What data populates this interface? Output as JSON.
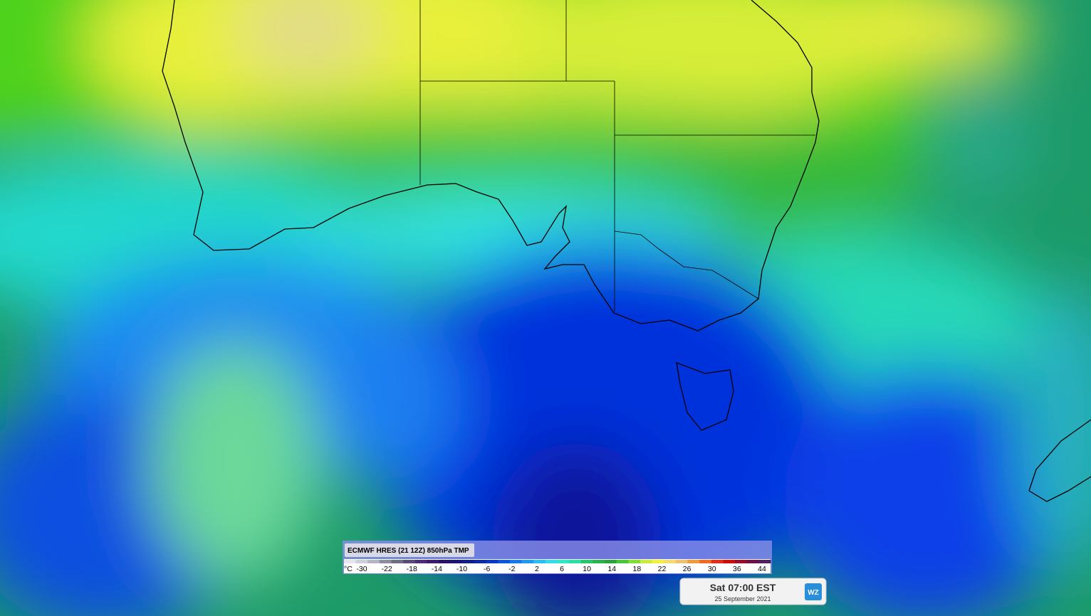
{
  "legend": {
    "title": "ECMWF HRES (21 12Z) 850hPa TMP",
    "unit": "°C",
    "labels": [
      -30,
      -22,
      -18,
      -14,
      -10,
      -6,
      -2,
      2,
      6,
      10,
      14,
      18,
      22,
      26,
      30,
      36,
      44
    ],
    "colors": [
      "#e6e6ee",
      "#cfcfdc",
      "#b4b4c6",
      "#8c8ca2",
      "#6e6e86",
      "#5a4a78",
      "#4a2c7a",
      "#3c1a70",
      "#28126a",
      "#1c1476",
      "#101e88",
      "#0a2aa6",
      "#0838c8",
      "#0a56e0",
      "#1478f0",
      "#1c9af4",
      "#26c0f6",
      "#30dcf0",
      "#2ce8c8",
      "#28e0a0",
      "#20c868",
      "#26b44c",
      "#2aa23c",
      "#44c83a",
      "#7ee034",
      "#c6ee34",
      "#f2f23a",
      "#f4dc6a",
      "#eec070",
      "#f09a3a",
      "#f06a22",
      "#e82a18",
      "#d40a0a",
      "#9a0a2a",
      "#6e1048",
      "#502060"
    ]
  },
  "time": {
    "label": "Sat 07:00 EST",
    "date": "25 September 2021"
  },
  "logo": "WZ"
}
